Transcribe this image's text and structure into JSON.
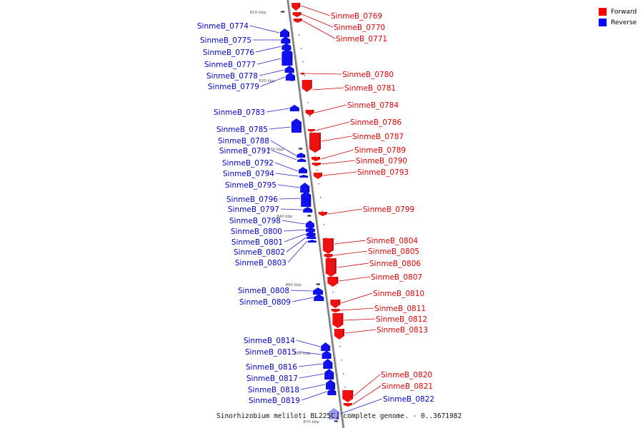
{
  "legend": {
    "forward_label": "Forward",
    "reverse_label": "Reverse",
    "forward_color": "#ff0000",
    "reverse_color": "#0000ff"
  },
  "caption": "Sinorhizobium meliloti BL225C, complete genome. - 0..3671982",
  "colors": {
    "backbone": "#888888",
    "forward": "#ee1111",
    "reverse": "#1111ee"
  },
  "ticks": [
    "810 kbp",
    "820 kbp",
    "830 kbp",
    "840 kbp",
    "850 kbp",
    "860 kbp",
    "870 kbp"
  ],
  "forward_genes": [
    "SinmeB_0769",
    "SinmeB_0770",
    "SinmeB_0771",
    "SinmeB_0780",
    "SinmeB_0781",
    "SinmeB_0784",
    "SinmeB_0786",
    "SinmeB_0787",
    "SinmeB_0789",
    "SinmeB_0790",
    "SinmeB_0793",
    "SinmeB_0799",
    "SinmeB_0804",
    "SinmeB_0805",
    "SinmeB_0806",
    "SinmeB_0807",
    "SinmeB_0810",
    "SinmeB_0811",
    "SinmeB_0812",
    "SinmeB_0813",
    "SinmeB_0820",
    "SinmeB_0821"
  ],
  "reverse_genes": [
    "SinmeB_0774",
    "SinmeB_0775",
    "SinmeB_0776",
    "SinmeB_0777",
    "SinmeB_0778",
    "SinmeB_0779",
    "SinmeB_0783",
    "SinmeB_0785",
    "SinmeB_0788",
    "SinmeB_0791",
    "SinmeB_0792",
    "SinmeB_0794",
    "SinmeB_0795",
    "SinmeB_0796",
    "SinmeB_0797",
    "SinmeB_0798",
    "SinmeB_0800",
    "SinmeB_0801",
    "SinmeB_0802",
    "SinmeB_0803",
    "SinmeB_0808",
    "SinmeB_0809",
    "SinmeB_0814",
    "SinmeB_0815",
    "SinmeB_0816",
    "SinmeB_0817",
    "SinmeB_0818",
    "SinmeB_0819",
    "SinmeB_0822"
  ]
}
